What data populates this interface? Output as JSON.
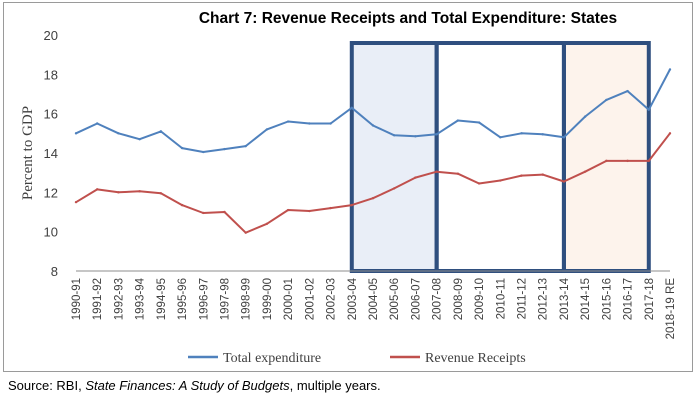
{
  "chart_data": {
    "type": "line",
    "title": "Chart 7: Revenue Receipts and Total Expenditure: States",
    "xlabel": "",
    "ylabel": "Percent to GDP",
    "ylim": [
      8,
      20
    ],
    "yticks": [
      8,
      10,
      12,
      14,
      16,
      18,
      20
    ],
    "legend_position": "bottom",
    "categories": [
      "1990-91",
      "1991-92",
      "1992-93",
      "1993-94",
      "1994-95",
      "1995-96",
      "1996-97",
      "1997-98",
      "1998-99",
      "1999-00",
      "2000-01",
      "2001-02",
      "2002-03",
      "2003-04",
      "2004-05",
      "2005-06",
      "2006-07",
      "2007-08",
      "2008-09",
      "2009-10",
      "2010-11",
      "2011-12",
      "2012-13",
      "2013-14",
      "2014-15",
      "2015-16",
      "2016-17",
      "2017-18",
      "2018-19 RE"
    ],
    "series": [
      {
        "name": "Total expenditure",
        "color": "#4f81bd",
        "values": [
          15.0,
          15.5,
          15.0,
          14.7,
          15.1,
          14.25,
          14.05,
          14.2,
          14.35,
          15.2,
          15.6,
          15.5,
          15.5,
          16.3,
          15.4,
          14.9,
          14.85,
          14.95,
          15.65,
          15.55,
          14.8,
          15.0,
          14.95,
          14.8,
          15.85,
          16.7,
          17.15,
          16.2,
          18.25
        ]
      },
      {
        "name": "Revenue Receipts",
        "color": "#c0504d",
        "values": [
          11.5,
          12.15,
          12.0,
          12.05,
          11.95,
          11.35,
          10.95,
          11.0,
          9.95,
          10.4,
          11.1,
          11.05,
          11.2,
          11.35,
          11.7,
          12.2,
          12.75,
          13.05,
          12.95,
          12.45,
          12.6,
          12.85,
          12.9,
          12.55,
          13.05,
          13.6,
          13.6,
          13.6,
          15.0
        ]
      }
    ],
    "highlight_periods": [
      {
        "from": "2003-04",
        "to": "2007-08",
        "fill": "#e9eef7"
      },
      {
        "from": "2007-08",
        "to": "2013-14",
        "fill": "#ffffff"
      },
      {
        "from": "2013-14",
        "to": "2017-18",
        "fill": "#fdf3ec"
      }
    ],
    "box_color": "#2f4f7f"
  },
  "source": {
    "prefix": "Source: RBI, ",
    "italic": "State Finances: A Study of Budgets",
    "suffix": ", multiple years."
  }
}
